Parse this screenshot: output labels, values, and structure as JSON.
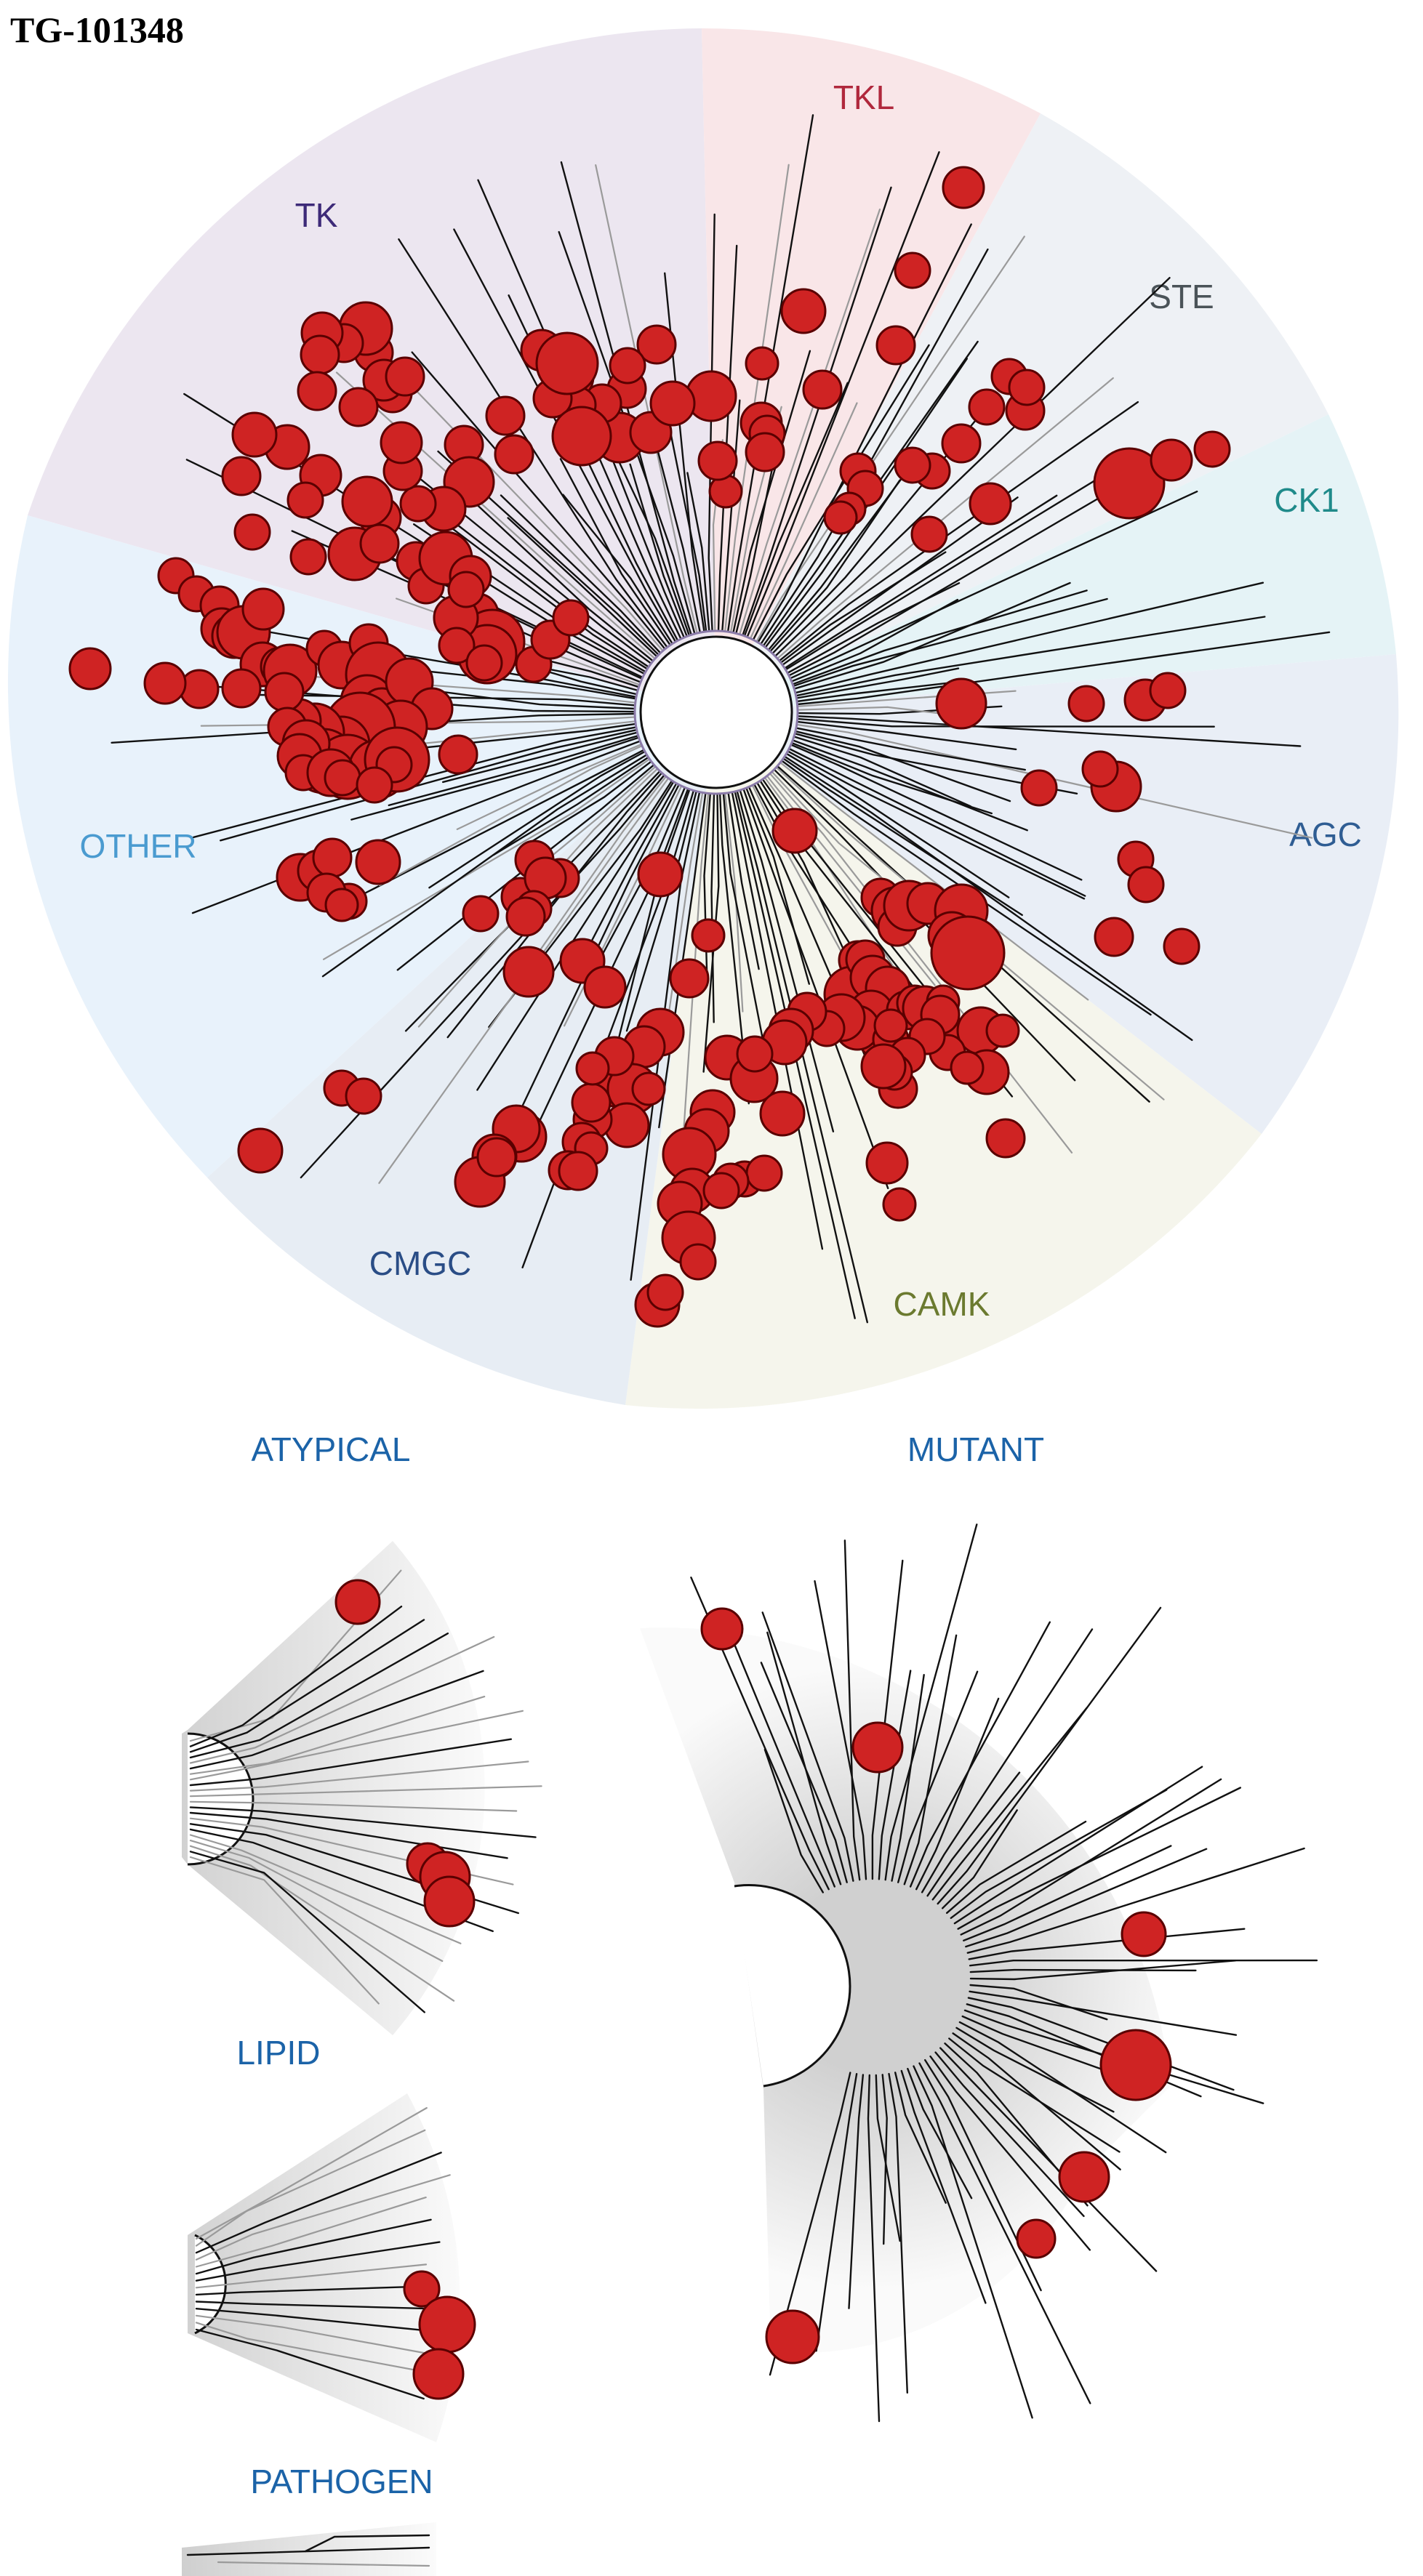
{
  "title": "TG-101348",
  "colors": {
    "hit_fill": "#cf2323",
    "hit_stroke": "#5a0000",
    "branch": "#111111",
    "sub_label": "#1b63a8"
  },
  "groups": [
    {
      "name": "TK",
      "color": "#3d2a78",
      "sector": "#ece6f0"
    },
    {
      "name": "TKL",
      "color": "#b0283c",
      "sector": "#f9e6e8"
    },
    {
      "name": "STE",
      "color": "#4a5358",
      "sector": "#eef1f5"
    },
    {
      "name": "CK1",
      "color": "#1f8a8a",
      "sector": "#e5f3f6"
    },
    {
      "name": "AGC",
      "color": "#2f5d93",
      "sector": "#e9eef6"
    },
    {
      "name": "CAMK",
      "color": "#6b7a2f",
      "sector": "#f5f5ec"
    },
    {
      "name": "CMGC",
      "color": "#2a4d86",
      "sector": "#e7edf4"
    },
    {
      "name": "OTHER",
      "color": "#4a9bd0",
      "sector": "#e8f2fb"
    }
  ],
  "sub_trees": {
    "atypical": "ATYPICAL",
    "mutant": "MUTANT",
    "lipid": "LIPID",
    "pathogen": "PATHOGEN"
  }
}
